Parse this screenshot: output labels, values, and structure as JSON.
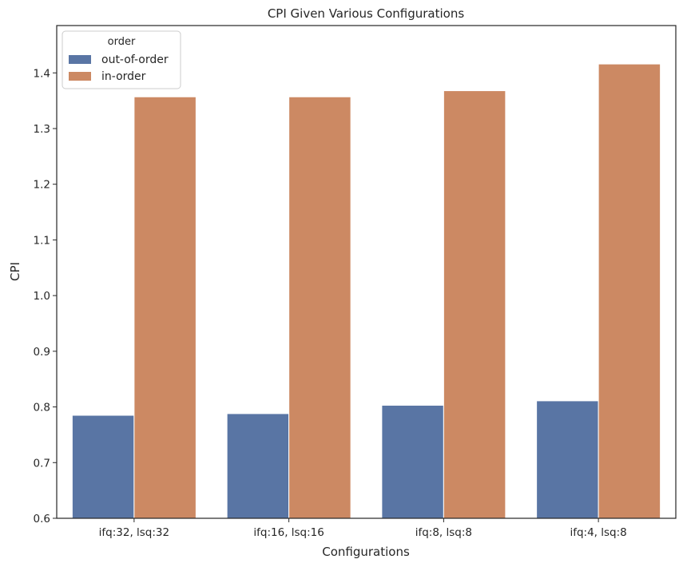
{
  "chart_data": {
    "type": "bar",
    "title": "CPI Given Various Configurations",
    "xlabel": "Configurations",
    "ylabel": "CPI",
    "categories": [
      "ifq:32, lsq:32",
      "ifq:16, lsq:16",
      "ifq:8, lsq:8",
      "ifq:4, lsq:8"
    ],
    "series": [
      {
        "name": "out-of-order",
        "values": [
          0.785,
          0.788,
          0.803,
          0.811
        ],
        "color": "#5975a4"
      },
      {
        "name": "in-order",
        "values": [
          1.357,
          1.357,
          1.368,
          1.416
        ],
        "color": "#cc8963"
      }
    ],
    "ylim": [
      0.6,
      1.485
    ],
    "yticks": [
      "0.6",
      "0.7",
      "0.8",
      "0.9",
      "1.0",
      "1.1",
      "1.2",
      "1.3",
      "1.4"
    ],
    "legend": {
      "title": "order",
      "position": "top-left"
    },
    "grid": false
  }
}
